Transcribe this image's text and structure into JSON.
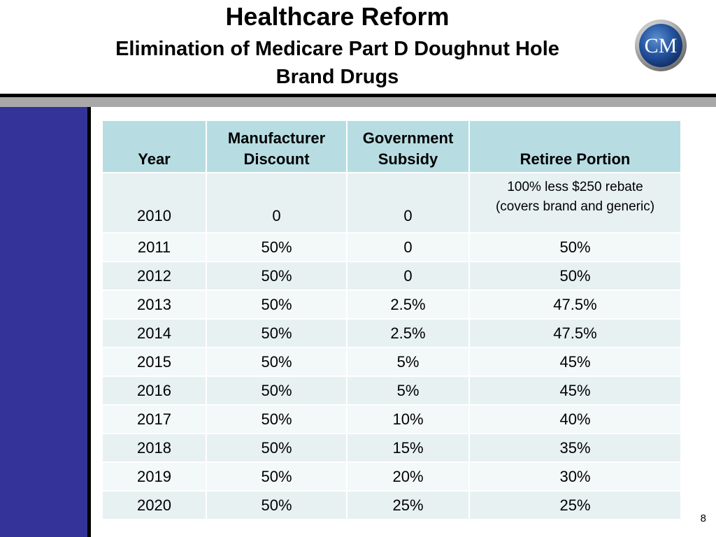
{
  "slide": {
    "title": "Healthcare Reform",
    "subtitle_line1": "Elimination of Medicare Part D Doughnut Hole",
    "subtitle_line2": "Brand Drugs",
    "logo_text": "CM",
    "page_number": "8"
  },
  "colors": {
    "sidebar": "#333399",
    "header_fill": "#b7dde3",
    "row_fill_alt_1": "#e7f1f2",
    "row_fill_alt_2": "#f3f8f8"
  },
  "table": {
    "headers": {
      "year": "Year",
      "manufacturer_line1": "Manufacturer",
      "manufacturer_line2": "Discount",
      "government_line1": "Government",
      "government_line2": "Subsidy",
      "retiree": "Retiree Portion"
    },
    "first_row": {
      "year": "2010",
      "manufacturer": "0",
      "government": "0",
      "retiree_line1": "100% less $250 rebate",
      "retiree_line2": "(covers brand and generic)"
    },
    "rows": [
      {
        "year": "2011",
        "manufacturer": "50%",
        "government": "0",
        "retiree": "50%"
      },
      {
        "year": "2012",
        "manufacturer": "50%",
        "government": "0",
        "retiree": "50%"
      },
      {
        "year": "2013",
        "manufacturer": "50%",
        "government": "2.5%",
        "retiree": "47.5%"
      },
      {
        "year": "2014",
        "manufacturer": "50%",
        "government": "2.5%",
        "retiree": "47.5%"
      },
      {
        "year": "2015",
        "manufacturer": "50%",
        "government": "5%",
        "retiree": "45%"
      },
      {
        "year": "2016",
        "manufacturer": "50%",
        "government": "5%",
        "retiree": "45%"
      },
      {
        "year": "2017",
        "manufacturer": "50%",
        "government": "10%",
        "retiree": "40%"
      },
      {
        "year": "2018",
        "manufacturer": "50%",
        "government": "15%",
        "retiree": "35%"
      },
      {
        "year": "2019",
        "manufacturer": "50%",
        "government": "20%",
        "retiree": "30%"
      },
      {
        "year": "2020",
        "manufacturer": "50%",
        "government": "25%",
        "retiree": "25%"
      }
    ]
  }
}
